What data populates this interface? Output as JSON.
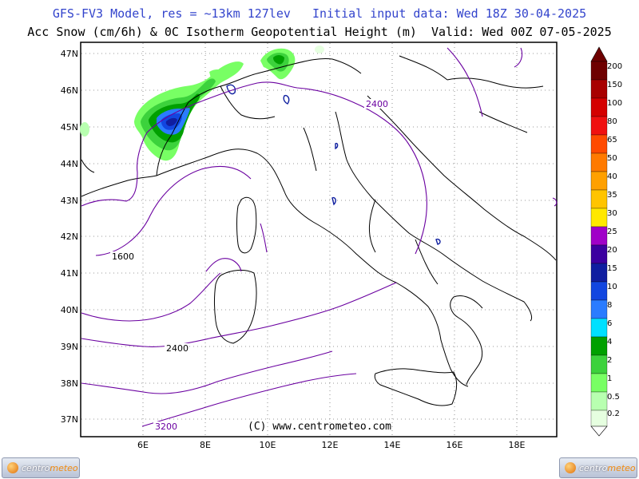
{
  "header": {
    "line1": "GFS-FV3 Model, res = ~13km 127lev   Initial input data: Wed 18Z 30-04-2025",
    "line2": "Acc Snow (cm/6h) & 0C Isotherm Geopotential Height (m)  Valid: Wed 00Z 07-05-2025"
  },
  "axes": {
    "lat_labels": [
      "47N",
      "46N",
      "45N",
      "44N",
      "43N",
      "42N",
      "41N",
      "40N",
      "39N",
      "38N",
      "37N"
    ],
    "lon_labels": [
      "6E",
      "8E",
      "10E",
      "12E",
      "14E",
      "16E",
      "18E"
    ]
  },
  "isotherm_labels": [
    "2400",
    "1600",
    "2400",
    "3200"
  ],
  "legend": {
    "levels": [
      "200",
      "150",
      "100",
      "80",
      "65",
      "50",
      "40",
      "35",
      "30",
      "25",
      "20",
      "15",
      "10",
      "8",
      "6",
      "4",
      "2",
      "1",
      "0.5",
      "0.2"
    ],
    "colors": [
      "#6e0000",
      "#a80000",
      "#d40000",
      "#f01010",
      "#ff4a00",
      "#ff7a00",
      "#ffa000",
      "#ffc400",
      "#ffe800",
      "#a000c8",
      "#3c00a0",
      "#101ea0",
      "#1246e0",
      "#2a7cff",
      "#00e0ff",
      "#00a000",
      "#3cd23c",
      "#78ff64",
      "#b8ffb0",
      "#e6ffe0"
    ]
  },
  "copyright": "(C) www.centrometeo.com",
  "logo": {
    "part1": "centro",
    "part2": "meteo"
  }
}
